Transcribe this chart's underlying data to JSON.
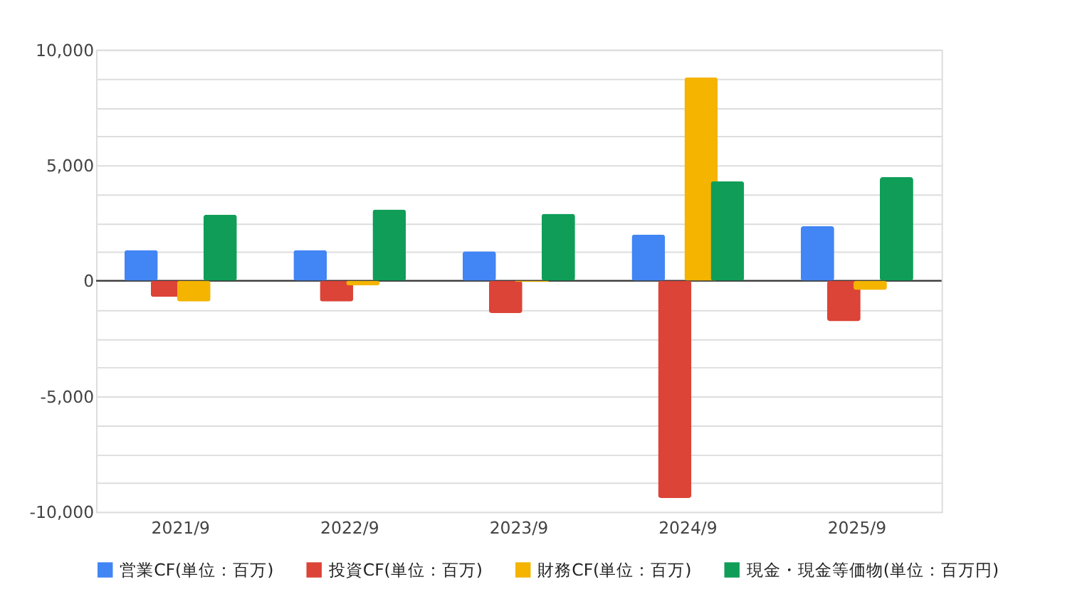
{
  "chart_data": {
    "type": "bar",
    "categories": [
      "2021/9",
      "2022/9",
      "2023/9",
      "2024/9",
      "2025/9"
    ],
    "series": [
      {
        "name": "営業CF(単位：百万)",
        "color": "#4285f4",
        "values": [
          1330,
          1330,
          1270,
          2000,
          2360
        ]
      },
      {
        "name": "投資CF(単位：百万)",
        "color": "#db4437",
        "values": [
          -700,
          -900,
          -1400,
          -9400,
          -1750
        ]
      },
      {
        "name": "財務CF(単位：百万)",
        "color": "#f4b400",
        "values": [
          -900,
          -200,
          -50,
          8800,
          -400
        ]
      },
      {
        "name": "現金・現金等価物(単位：百万円)",
        "color": "#0f9d58",
        "values": [
          2860,
          3080,
          2900,
          4300,
          4480
        ]
      }
    ],
    "ylim": [
      -10000,
      10000
    ],
    "yticks": [
      {
        "value": -10000,
        "label": "-10,000"
      },
      {
        "value": -8750,
        "label": null
      },
      {
        "value": -7500,
        "label": null
      },
      {
        "value": -6250,
        "label": null
      },
      {
        "value": -5000,
        "label": "-5,000"
      },
      {
        "value": -3750,
        "label": null
      },
      {
        "value": -2500,
        "label": null
      },
      {
        "value": -1250,
        "label": null
      },
      0,
      {
        "value": 1250,
        "label": null
      },
      {
        "value": 2500,
        "label": null
      },
      {
        "value": 3750,
        "label": null
      },
      {
        "value": 5000,
        "label": "5,000"
      },
      {
        "value": 6250,
        "label": null
      },
      {
        "value": 7500,
        "label": null
      },
      {
        "value": 8750,
        "label": null
      },
      {
        "value": 10000,
        "label": "10,000"
      }
    ],
    "ref_lines": [
      {
        "axis": "y",
        "value": 0,
        "color": "#333333"
      }
    ],
    "grid": "y",
    "legend": "bottom"
  }
}
